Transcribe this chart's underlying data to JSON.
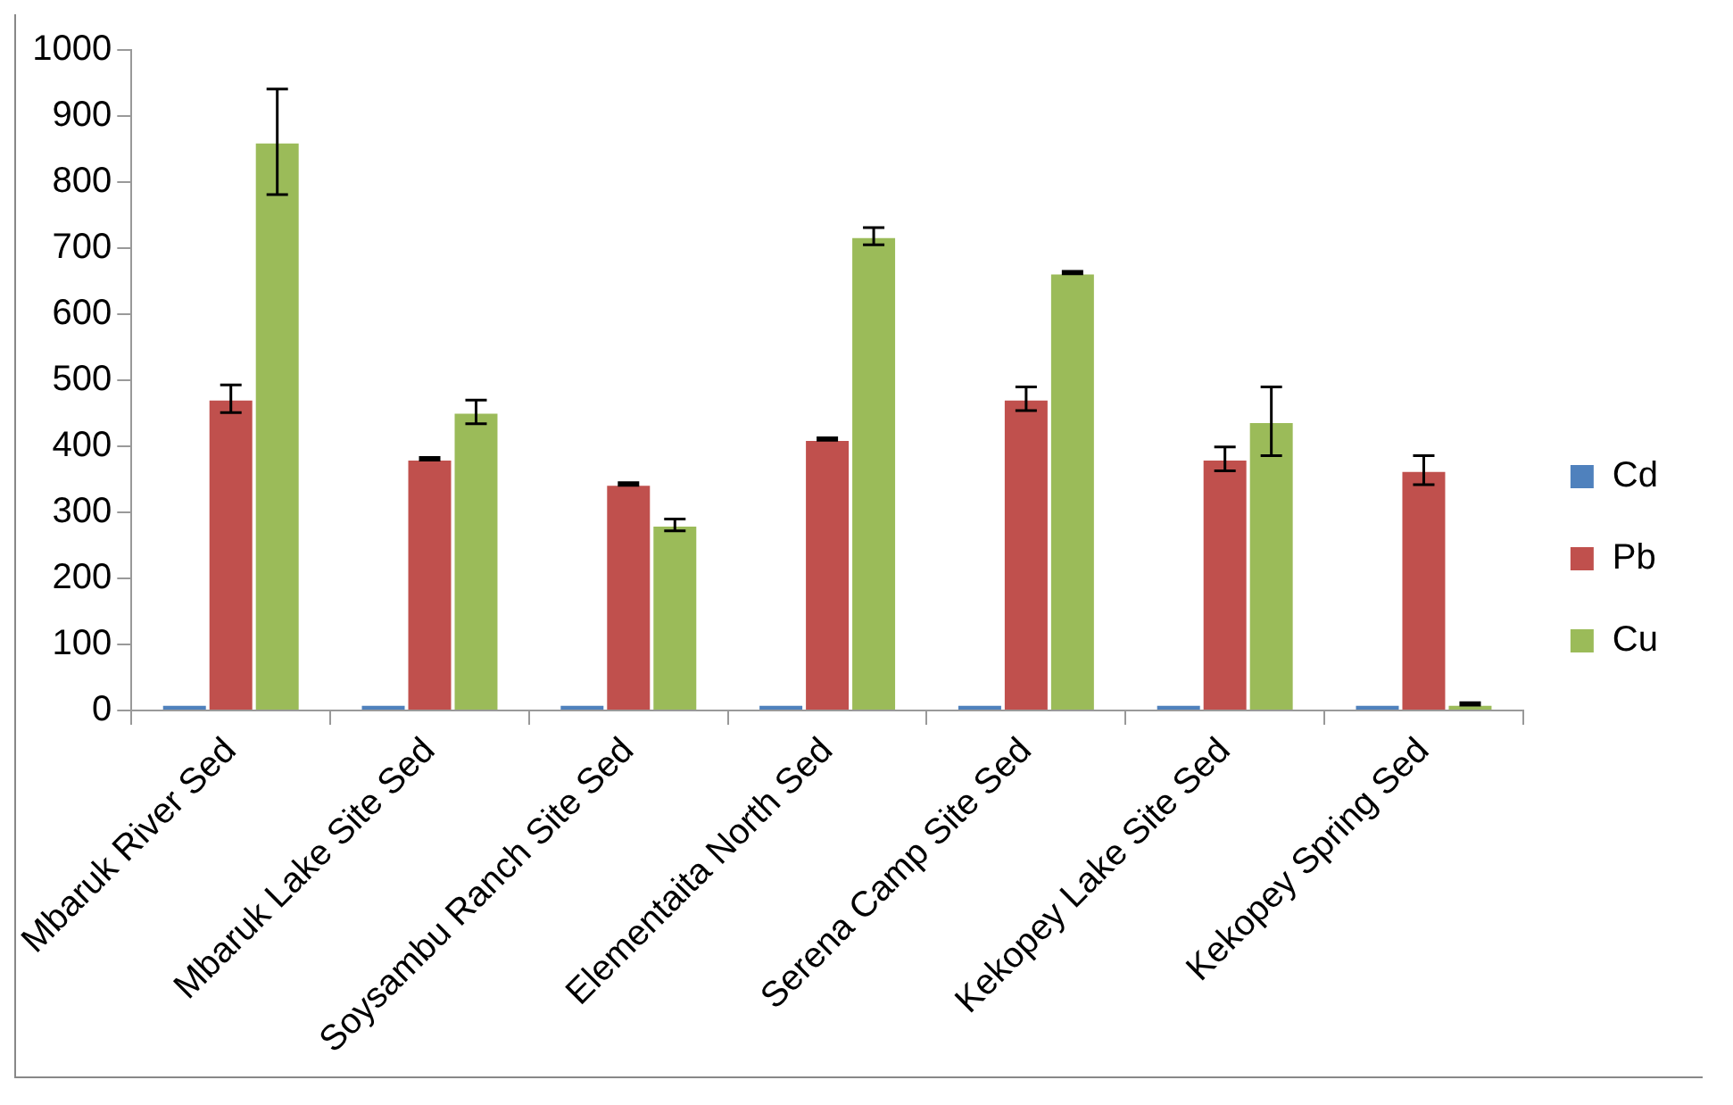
{
  "chart_data": {
    "type": "bar",
    "categories": [
      "Mbaruk River Sed",
      "Mbaruk Lake Site Sed",
      "Soysambu Ranch Site Sed",
      "Elementaita North Sed",
      "Serena Camp Site Sed",
      "Kekopey Lake Site Sed",
      "Kekopey Spring Sed"
    ],
    "series": [
      {
        "name": "Cd",
        "color": "#4f81bd",
        "values": [
          10,
          10,
          10,
          10,
          10,
          10,
          10
        ]
      },
      {
        "name": "Pb",
        "color": "#c0504d",
        "values": [
          472,
          381,
          343,
          411,
          472,
          381,
          364
        ],
        "errors": [
          21,
          2,
          2,
          2,
          18,
          18,
          22
        ]
      },
      {
        "name": "Cu",
        "color": "#9bbb59",
        "values": [
          861,
          452,
          281,
          718,
          663,
          438,
          10
        ],
        "errors": [
          80,
          18,
          9,
          13,
          2,
          52,
          2
        ]
      }
    ],
    "ylim": [
      0,
      1000
    ],
    "yticks": [
      0,
      100,
      200,
      300,
      400,
      500,
      600,
      700,
      800,
      900,
      1000
    ],
    "grid": false,
    "legend": "right"
  }
}
